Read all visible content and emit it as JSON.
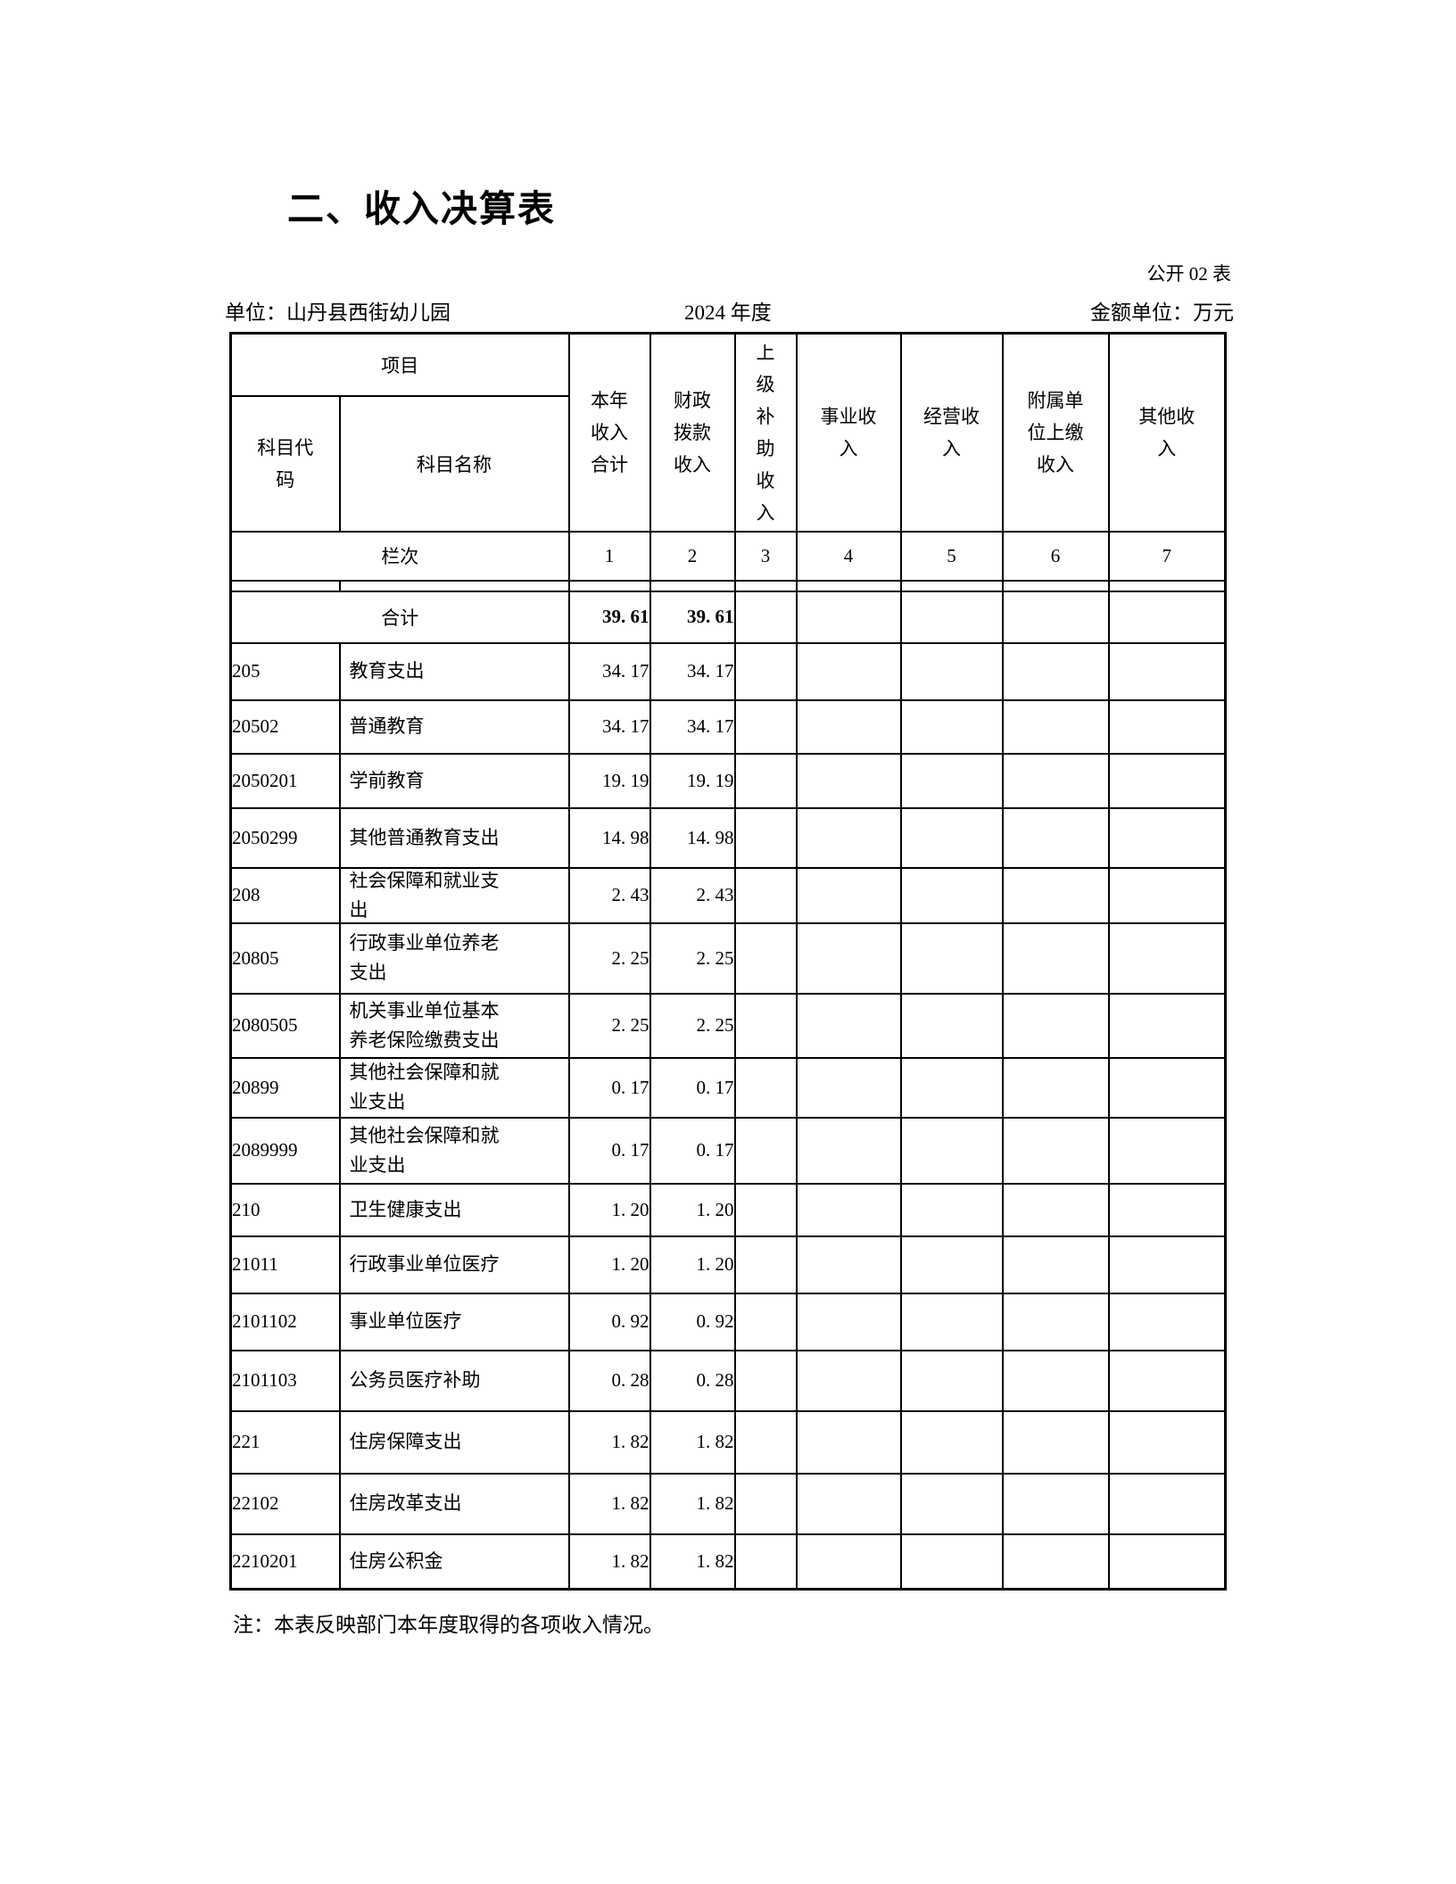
{
  "page": {
    "title": "二、收入决算表",
    "table_code": "公开 02 表",
    "unit_label": "单位：山丹县西街幼儿园",
    "year_label": "2024 年度",
    "amount_unit_label": "金额单位：万元",
    "note": "注：本表反映部门本年度取得的各项收入情况。"
  },
  "table": {
    "header": {
      "project_label": "项目",
      "code_label": "科目代\n码",
      "name_label": "科目名称",
      "value_cols": [
        "本年\n收入\n合计",
        "财政\n拨款\n收入",
        "上\n级\n补\n助\n收\n入",
        "事业收\n入",
        "经营收\n入",
        "附属单\n位上缴\n收入",
        "其他收\n入"
      ]
    },
    "lanci_row": {
      "label": "栏次",
      "nums": [
        "1",
        "2",
        "3",
        "4",
        "5",
        "6",
        "7"
      ]
    },
    "total_row": {
      "label": "合计",
      "values": [
        "39. 61",
        "39. 61",
        "",
        "",
        "",
        "",
        ""
      ]
    },
    "rows": [
      {
        "code": "205",
        "name": "教育支出",
        "values": [
          "34. 17",
          "34. 17",
          "",
          "",
          "",
          "",
          ""
        ]
      },
      {
        "code": "20502",
        "name": "普通教育",
        "values": [
          "34. 17",
          "34. 17",
          "",
          "",
          "",
          "",
          ""
        ]
      },
      {
        "code": "2050201",
        "name": "学前教育",
        "values": [
          "19. 19",
          "19. 19",
          "",
          "",
          "",
          "",
          ""
        ]
      },
      {
        "code": "2050299",
        "name": "其他普通教育支出",
        "values": [
          "14. 98",
          "14. 98",
          "",
          "",
          "",
          "",
          ""
        ]
      },
      {
        "code": "208",
        "name": "社会保障和就业支\n出",
        "values": [
          "2. 43",
          "2. 43",
          "",
          "",
          "",
          "",
          ""
        ]
      },
      {
        "code": "20805",
        "name": "行政事业单位养老\n支出",
        "values": [
          "2. 25",
          "2. 25",
          "",
          "",
          "",
          "",
          ""
        ]
      },
      {
        "code": "2080505",
        "name": "机关事业单位基本\n养老保险缴费支出",
        "values": [
          "2. 25",
          "2. 25",
          "",
          "",
          "",
          "",
          ""
        ]
      },
      {
        "code": "20899",
        "name": "其他社会保障和就\n业支出",
        "values": [
          "0. 17",
          "0. 17",
          "",
          "",
          "",
          "",
          ""
        ]
      },
      {
        "code": "2089999",
        "name": "其他社会保障和就\n业支出",
        "values": [
          "0. 17",
          "0. 17",
          "",
          "",
          "",
          "",
          ""
        ]
      },
      {
        "code": "210",
        "name": "卫生健康支出",
        "values": [
          "1. 20",
          "1. 20",
          "",
          "",
          "",
          "",
          ""
        ]
      },
      {
        "code": "21011",
        "name": "行政事业单位医疗",
        "values": [
          "1. 20",
          "1. 20",
          "",
          "",
          "",
          "",
          ""
        ]
      },
      {
        "code": "2101102",
        "name": "事业单位医疗",
        "values": [
          "0. 92",
          "0. 92",
          "",
          "",
          "",
          "",
          ""
        ]
      },
      {
        "code": "2101103",
        "name": "公务员医疗补助",
        "values": [
          "0. 28",
          "0. 28",
          "",
          "",
          "",
          "",
          ""
        ]
      },
      {
        "code": "221",
        "name": "住房保障支出",
        "values": [
          "1. 82",
          "1. 82",
          "",
          "",
          "",
          "",
          ""
        ]
      },
      {
        "code": "22102",
        "name": "住房改革支出",
        "values": [
          "1. 82",
          "1. 82",
          "",
          "",
          "",
          "",
          ""
        ]
      },
      {
        "code": "2210201",
        "name": "住房公积金",
        "values": [
          "1. 82",
          "1. 82",
          "",
          "",
          "",
          "",
          ""
        ]
      }
    ]
  }
}
